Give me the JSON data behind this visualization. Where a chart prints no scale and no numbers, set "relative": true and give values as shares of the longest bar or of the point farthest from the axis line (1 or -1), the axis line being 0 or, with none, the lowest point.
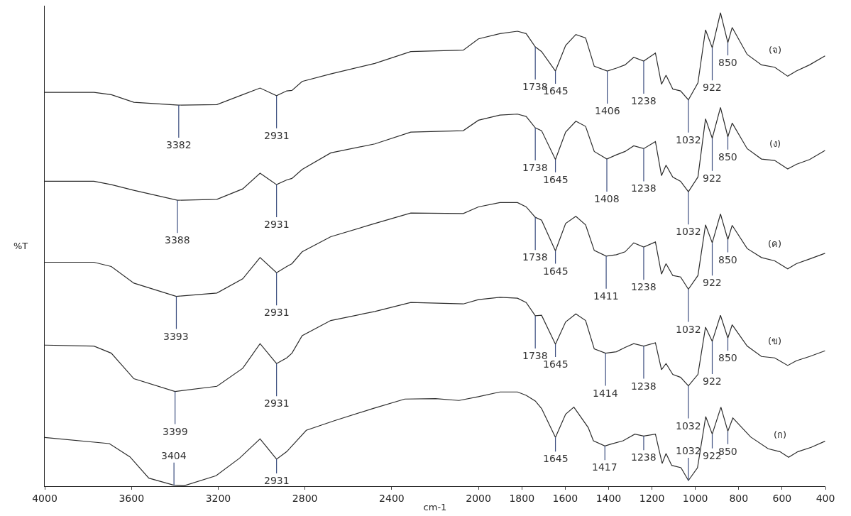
{
  "chart_data": {
    "type": "line",
    "relative": true,
    "xlabel": "cm-1",
    "ylabel": "%T",
    "xlim": [
      4000,
      400
    ],
    "xticks": [
      4000,
      3600,
      3200,
      2800,
      2400,
      2000,
      1800,
      1600,
      1400,
      1200,
      1000,
      800,
      600,
      400
    ],
    "series": [
      {
        "name": "(จ)",
        "color": "#2b2b2b",
        "x": [
          4000,
          3773,
          3693,
          3589,
          3382,
          3206,
          3087,
          3007,
          2931,
          2884,
          2860,
          2813,
          2681,
          2478,
          2312,
          2070,
          2000,
          1901,
          1820,
          1780,
          1738,
          1709,
          1645,
          1598,
          1551,
          1506,
          1466,
          1406,
          1364,
          1324,
          1284,
          1238,
          1184,
          1156,
          1135,
          1104,
          1068,
          1032,
          988,
          953,
          922,
          884,
          850,
          830,
          761,
          695,
          634,
          574,
          534,
          473,
          402
        ],
        "values": [
          0.832,
          0.832,
          0.827,
          0.811,
          0.805,
          0.806,
          0.827,
          0.841,
          0.825,
          0.835,
          0.836,
          0.855,
          0.871,
          0.893,
          0.918,
          0.921,
          0.945,
          0.956,
          0.961,
          0.956,
          0.928,
          0.918,
          0.877,
          0.931,
          0.954,
          0.947,
          0.887,
          0.877,
          0.883,
          0.89,
          0.906,
          0.898,
          0.915,
          0.849,
          0.868,
          0.839,
          0.835,
          0.816,
          0.852,
          0.964,
          0.926,
          1.0,
          0.937,
          0.969,
          0.912,
          0.89,
          0.885,
          0.866,
          0.877,
          0.89,
          0.909
        ]
      },
      {
        "name": "(ง)",
        "color": "#2b2b2b",
        "x": [
          4000,
          3773,
          3693,
          3589,
          3388,
          3206,
          3087,
          3007,
          2931,
          2884,
          2860,
          2813,
          2681,
          2478,
          2312,
          2070,
          2000,
          1901,
          1820,
          1780,
          1738,
          1709,
          1645,
          1598,
          1551,
          1506,
          1466,
          1408,
          1364,
          1324,
          1284,
          1238,
          1184,
          1156,
          1135,
          1104,
          1068,
          1032,
          988,
          953,
          922,
          884,
          850,
          830,
          761,
          695,
          634,
          574,
          534,
          473,
          402
        ],
        "values": [
          0.644,
          0.644,
          0.637,
          0.625,
          0.604,
          0.606,
          0.628,
          0.661,
          0.637,
          0.647,
          0.65,
          0.669,
          0.704,
          0.723,
          0.748,
          0.751,
          0.773,
          0.784,
          0.786,
          0.781,
          0.757,
          0.751,
          0.69,
          0.748,
          0.771,
          0.76,
          0.707,
          0.691,
          0.7,
          0.707,
          0.719,
          0.713,
          0.728,
          0.656,
          0.678,
          0.653,
          0.644,
          0.622,
          0.653,
          0.776,
          0.735,
          0.8,
          0.738,
          0.767,
          0.713,
          0.691,
          0.688,
          0.67,
          0.68,
          0.69,
          0.709
        ]
      },
      {
        "name": "(ค)",
        "color": "#2b2b2b",
        "x": [
          4000,
          3773,
          3693,
          3589,
          3393,
          3206,
          3087,
          3007,
          2931,
          2884,
          2860,
          2813,
          2681,
          2478,
          2312,
          2070,
          2000,
          1901,
          1820,
          1780,
          1738,
          1709,
          1645,
          1598,
          1551,
          1506,
          1466,
          1411,
          1364,
          1324,
          1284,
          1238,
          1184,
          1156,
          1135,
          1104,
          1068,
          1032,
          988,
          953,
          922,
          884,
          850,
          830,
          761,
          695,
          634,
          574,
          534,
          473,
          402
        ],
        "values": [
          0.473,
          0.473,
          0.464,
          0.429,
          0.401,
          0.408,
          0.438,
          0.483,
          0.451,
          0.464,
          0.47,
          0.495,
          0.527,
          0.555,
          0.577,
          0.576,
          0.59,
          0.599,
          0.599,
          0.59,
          0.568,
          0.562,
          0.497,
          0.555,
          0.57,
          0.552,
          0.498,
          0.486,
          0.489,
          0.495,
          0.514,
          0.505,
          0.516,
          0.448,
          0.47,
          0.445,
          0.442,
          0.416,
          0.445,
          0.552,
          0.514,
          0.575,
          0.521,
          0.551,
          0.502,
          0.483,
          0.476,
          0.459,
          0.47,
          0.48,
          0.492
        ]
      },
      {
        "name": "(ข)",
        "color": "#2b2b2b",
        "x": [
          4000,
          3773,
          3693,
          3589,
          3399,
          3206,
          3087,
          3007,
          2931,
          2884,
          2860,
          2813,
          2681,
          2478,
          2312,
          2070,
          2000,
          1901,
          1820,
          1780,
          1738,
          1709,
          1645,
          1598,
          1551,
          1506,
          1466,
          1414,
          1364,
          1324,
          1284,
          1238,
          1184,
          1156,
          1135,
          1104,
          1068,
          1032,
          988,
          953,
          922,
          884,
          850,
          830,
          761,
          695,
          634,
          574,
          534,
          473,
          402
        ],
        "values": [
          0.298,
          0.296,
          0.281,
          0.227,
          0.2,
          0.211,
          0.249,
          0.301,
          0.259,
          0.271,
          0.281,
          0.318,
          0.35,
          0.369,
          0.388,
          0.385,
          0.394,
          0.399,
          0.397,
          0.388,
          0.36,
          0.361,
          0.3,
          0.347,
          0.364,
          0.35,
          0.29,
          0.281,
          0.284,
          0.293,
          0.301,
          0.296,
          0.303,
          0.246,
          0.259,
          0.236,
          0.23,
          0.212,
          0.236,
          0.336,
          0.306,
          0.361,
          0.313,
          0.341,
          0.296,
          0.274,
          0.271,
          0.255,
          0.265,
          0.274,
          0.286
        ]
      },
      {
        "name": "(ก)",
        "color": "#2b2b2b",
        "x": [
          4000,
          3702,
          3607,
          3520,
          3404,
          3357,
          3210,
          3102,
          3007,
          2931,
          2884,
          2794,
          2667,
          2487,
          2340,
          2198,
          2090,
          2000,
          1901,
          1820,
          1780,
          1738,
          1709,
          1645,
          1598,
          1560,
          1494,
          1470,
          1417,
          1388,
          1333,
          1279,
          1238,
          1184,
          1153,
          1135,
          1109,
          1066,
          1032,
          990,
          952,
          922,
          882,
          850,
          827,
          745,
          664,
          610,
          570,
          527,
          466,
          402
        ],
        "values": [
          0.103,
          0.09,
          0.062,
          0.017,
          0.002,
          0.001,
          0.022,
          0.059,
          0.1,
          0.057,
          0.073,
          0.118,
          0.138,
          0.164,
          0.184,
          0.185,
          0.181,
          0.189,
          0.199,
          0.199,
          0.192,
          0.18,
          0.164,
          0.103,
          0.152,
          0.167,
          0.124,
          0.096,
          0.085,
          0.089,
          0.096,
          0.11,
          0.106,
          0.11,
          0.048,
          0.069,
          0.044,
          0.039,
          0.012,
          0.039,
          0.147,
          0.11,
          0.167,
          0.116,
          0.144,
          0.104,
          0.079,
          0.073,
          0.061,
          0.073,
          0.082,
          0.095
        ]
      }
    ],
    "annotations": [
      {
        "text": "3382",
        "x": 3382,
        "y": 0.805
      },
      {
        "text": "2931",
        "x": 2931,
        "y": 0.825
      },
      {
        "text": "1738",
        "x": 1738,
        "y": 0.928
      },
      {
        "text": "1645",
        "x": 1645,
        "y": 0.877
      },
      {
        "text": "1406",
        "x": 1406,
        "y": 0.877
      },
      {
        "text": "1238",
        "x": 1238,
        "y": 0.898
      },
      {
        "text": "1032",
        "x": 1032,
        "y": 0.816
      },
      {
        "text": "922",
        "x": 922,
        "y": 0.926
      },
      {
        "text": "850",
        "x": 850,
        "y": 0.937
      },
      {
        "text": "3388",
        "x": 3388,
        "y": 0.604
      },
      {
        "text": "2931",
        "x": 2931,
        "y": 0.637
      },
      {
        "text": "1738",
        "x": 1738,
        "y": 0.757
      },
      {
        "text": "1645",
        "x": 1645,
        "y": 0.69
      },
      {
        "text": "1408",
        "x": 1408,
        "y": 0.691
      },
      {
        "text": "1238",
        "x": 1238,
        "y": 0.713
      },
      {
        "text": "1032",
        "x": 1032,
        "y": 0.622
      },
      {
        "text": "922",
        "x": 922,
        "y": 0.735
      },
      {
        "text": "850",
        "x": 850,
        "y": 0.738
      },
      {
        "text": "3393",
        "x": 3393,
        "y": 0.401
      },
      {
        "text": "2931",
        "x": 2931,
        "y": 0.451
      },
      {
        "text": "1738",
        "x": 1738,
        "y": 0.568
      },
      {
        "text": "1645",
        "x": 1645,
        "y": 0.497
      },
      {
        "text": "1411",
        "x": 1411,
        "y": 0.486
      },
      {
        "text": "1238",
        "x": 1238,
        "y": 0.505
      },
      {
        "text": "1032",
        "x": 1032,
        "y": 0.416
      },
      {
        "text": "922",
        "x": 922,
        "y": 0.514
      },
      {
        "text": "850",
        "x": 850,
        "y": 0.521
      },
      {
        "text": "3399",
        "x": 3399,
        "y": 0.2
      },
      {
        "text": "2931",
        "x": 2931,
        "y": 0.259
      },
      {
        "text": "1738",
        "x": 1738,
        "y": 0.36
      },
      {
        "text": "1645",
        "x": 1645,
        "y": 0.3
      },
      {
        "text": "1414",
        "x": 1414,
        "y": 0.281
      },
      {
        "text": "1238",
        "x": 1238,
        "y": 0.296
      },
      {
        "text": "1032",
        "x": 1032,
        "y": 0.212
      },
      {
        "text": "922",
        "x": 922,
        "y": 0.306
      },
      {
        "text": "850",
        "x": 850,
        "y": 0.313
      },
      {
        "text": "3404",
        "x": 3404,
        "y": 0.002
      },
      {
        "text": "2931",
        "x": 2931,
        "y": 0.057
      },
      {
        "text": "1645",
        "x": 1645,
        "y": 0.103
      },
      {
        "text": "1417",
        "x": 1417,
        "y": 0.085
      },
      {
        "text": "1238",
        "x": 1238,
        "y": 0.106
      },
      {
        "text": "1032",
        "x": 1032,
        "y": 0.012
      },
      {
        "text": "922",
        "x": 922,
        "y": 0.11
      },
      {
        "text": "850",
        "x": 850,
        "y": 0.116
      }
    ]
  }
}
